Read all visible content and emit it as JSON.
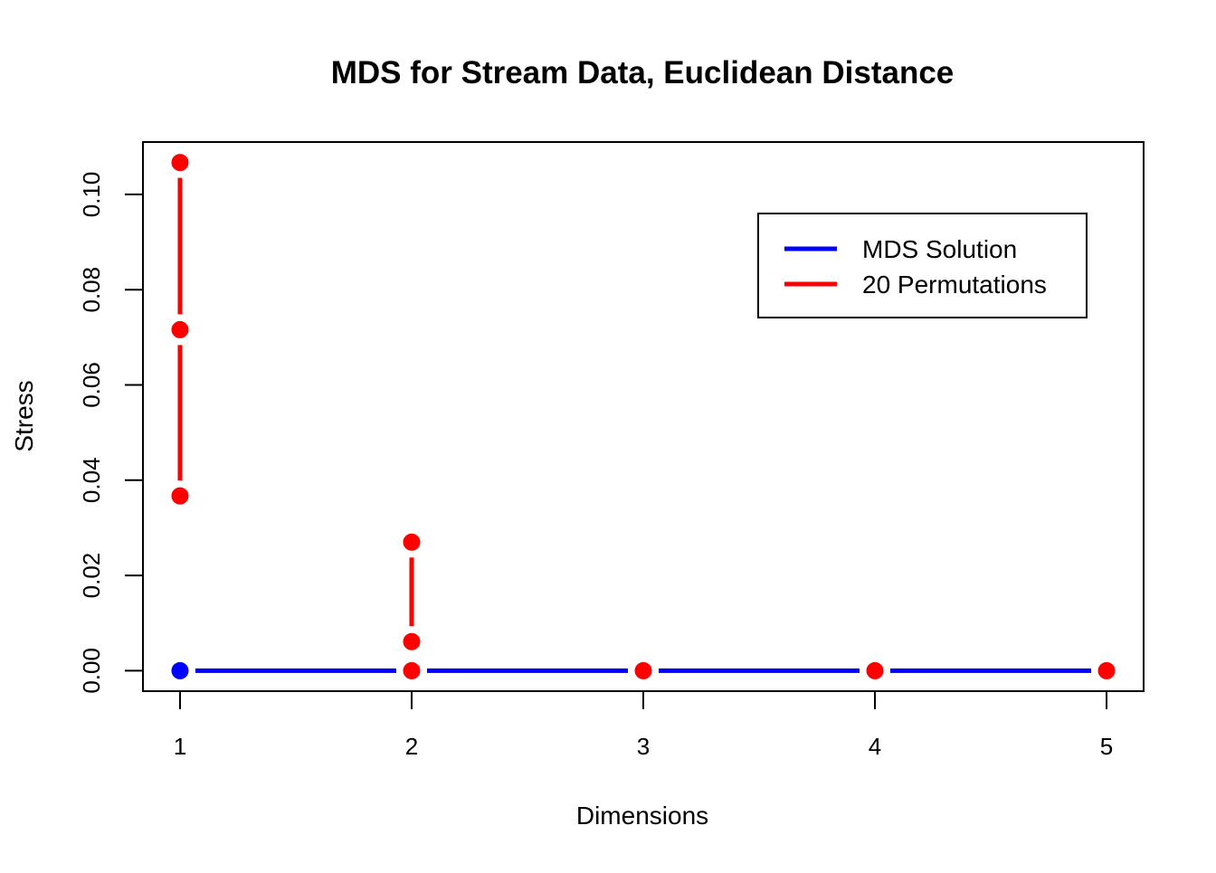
{
  "chart_data": {
    "type": "line",
    "title": "MDS for Stream Data, Euclidean Distance",
    "xlabel": "Dimensions",
    "ylabel": "Stress",
    "xlim": [
      0.84,
      5.16
    ],
    "ylim": [
      -0.0043,
      0.111
    ],
    "x_ticks": [
      1,
      2,
      3,
      4,
      5
    ],
    "x_tick_labels": [
      "1",
      "2",
      "3",
      "4",
      "5"
    ],
    "y_ticks": [
      0,
      0.02,
      0.04,
      0.06,
      0.08,
      0.1
    ],
    "y_tick_labels": [
      "0.00",
      "0.02",
      "0.04",
      "0.06",
      "0.08",
      "0.10"
    ],
    "legend_position": "top-right",
    "series": [
      {
        "name": "MDS Solution",
        "color": "#0000ff",
        "x": [
          1,
          2,
          3,
          4,
          5
        ],
        "values": [
          0.0,
          0.0,
          0.0,
          0.0,
          0.0
        ]
      },
      {
        "name": "20 Permutations",
        "color": "#ff0000",
        "x": [
          1,
          2,
          3,
          4,
          5
        ],
        "values": [
          0.1067,
          0.027,
          0.0,
          0.0,
          0.0
        ],
        "mid": [
          0.0716,
          0.0061,
          0.0,
          0.0,
          0.0
        ],
        "low": [
          0.0367,
          0.0,
          0.0,
          0.0,
          0.0
        ]
      }
    ]
  }
}
